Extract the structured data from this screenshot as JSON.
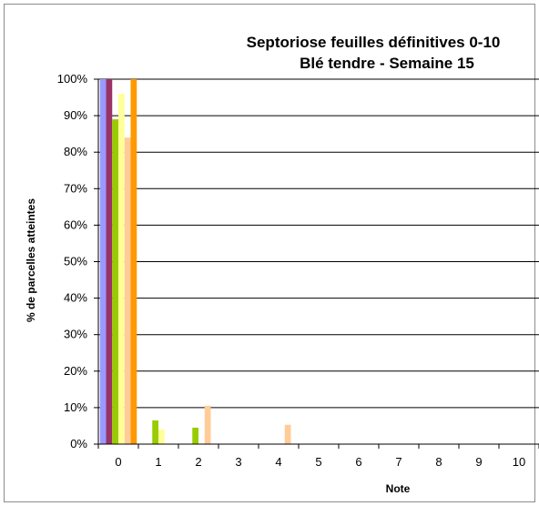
{
  "chart_data": {
    "type": "bar",
    "title": [
      "Septoriose feuilles  définitives 0-10",
      "Blé tendre - Semaine 15"
    ],
    "xlabel": "Note",
    "ylabel": "% de parcelles atteintes",
    "categories": [
      "0",
      "1",
      "2",
      "3",
      "4",
      "5",
      "6",
      "7",
      "8",
      "9",
      "10"
    ],
    "ylim": [
      0,
      100
    ],
    "yticks": [
      "0%",
      "10%",
      "20%",
      "30%",
      "40%",
      "50%",
      "60%",
      "70%",
      "80%",
      "90%",
      "100%"
    ],
    "grid": true,
    "series": [
      {
        "color": "#9999ff",
        "values": [
          100,
          0,
          0,
          0,
          0,
          0,
          0,
          0,
          0,
          0,
          0
        ]
      },
      {
        "color": "#993366",
        "values": [
          100,
          0,
          0,
          0,
          0,
          0,
          0,
          0,
          0,
          0,
          0
        ]
      },
      {
        "color": "#99cc00",
        "values": [
          89,
          6.5,
          4.5,
          0,
          0,
          0,
          0,
          0,
          0,
          0,
          0
        ]
      },
      {
        "color": "#ffff99",
        "values": [
          96,
          4,
          0,
          0,
          0,
          0,
          0,
          0,
          0,
          0,
          0
        ]
      },
      {
        "color": "#ffcc99",
        "values": [
          84,
          0,
          10.5,
          0,
          5.3,
          0,
          0,
          0,
          0,
          0,
          0
        ]
      },
      {
        "color": "#ff9900",
        "values": [
          100,
          0,
          0,
          0,
          0,
          0,
          0,
          0,
          0,
          0,
          0
        ]
      }
    ]
  }
}
